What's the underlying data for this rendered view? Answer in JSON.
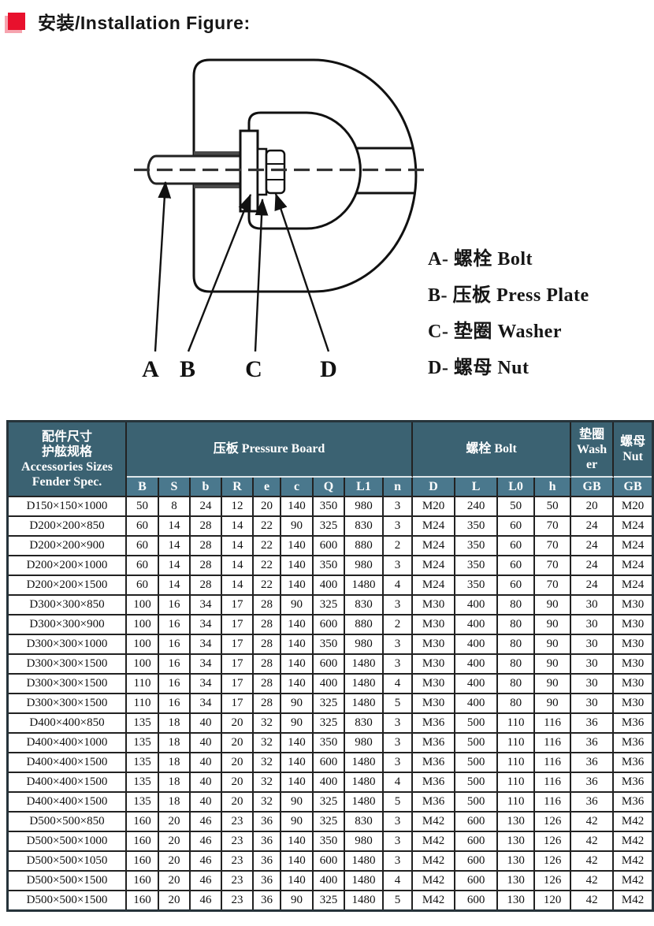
{
  "header": {
    "title": "安装/Installation Figure:"
  },
  "figure": {
    "part_labels": [
      "A",
      "B",
      "C",
      "D"
    ],
    "legend": [
      "A- 螺栓 Bolt",
      "B- 压板 Press Plate",
      "C- 垫圈 Washer",
      "D- 螺母 Nut"
    ]
  },
  "table": {
    "header": {
      "spec_lines": [
        "配件尺寸",
        "护舷规格",
        "Accessories Sizes",
        "Fender Spec."
      ],
      "pressure_board": "压板 Pressure Board",
      "bolt": "螺栓 Bolt",
      "washer_lines": [
        "垫圈",
        "Wash",
        "er"
      ],
      "nut_lines": [
        "螺母",
        "Nut"
      ],
      "pressure_cols": [
        "B",
        "S",
        "b",
        "R",
        "e",
        "c",
        "Q",
        "L1",
        "n"
      ],
      "bolt_cols": [
        "D",
        "L",
        "L0",
        "h"
      ],
      "washer_col": "GB",
      "nut_col": "GB"
    },
    "rows": [
      [
        "D150×150×1000",
        "50",
        "8",
        "24",
        "12",
        "20",
        "140",
        "350",
        "980",
        "3",
        "M20",
        "240",
        "50",
        "50",
        "20",
        "M20"
      ],
      [
        "D200×200×850",
        "60",
        "14",
        "28",
        "14",
        "22",
        "90",
        "325",
        "830",
        "3",
        "M24",
        "350",
        "60",
        "70",
        "24",
        "M24"
      ],
      [
        "D200×200×900",
        "60",
        "14",
        "28",
        "14",
        "22",
        "140",
        "600",
        "880",
        "2",
        "M24",
        "350",
        "60",
        "70",
        "24",
        "M24"
      ],
      [
        "D200×200×1000",
        "60",
        "14",
        "28",
        "14",
        "22",
        "140",
        "350",
        "980",
        "3",
        "M24",
        "350",
        "60",
        "70",
        "24",
        "M24"
      ],
      [
        "D200×200×1500",
        "60",
        "14",
        "28",
        "14",
        "22",
        "140",
        "400",
        "1480",
        "4",
        "M24",
        "350",
        "60",
        "70",
        "24",
        "M24"
      ],
      [
        "D300×300×850",
        "100",
        "16",
        "34",
        "17",
        "28",
        "90",
        "325",
        "830",
        "3",
        "M30",
        "400",
        "80",
        "90",
        "30",
        "M30"
      ],
      [
        "D300×300×900",
        "100",
        "16",
        "34",
        "17",
        "28",
        "140",
        "600",
        "880",
        "2",
        "M30",
        "400",
        "80",
        "90",
        "30",
        "M30"
      ],
      [
        "D300×300×1000",
        "100",
        "16",
        "34",
        "17",
        "28",
        "140",
        "350",
        "980",
        "3",
        "M30",
        "400",
        "80",
        "90",
        "30",
        "M30"
      ],
      [
        "D300×300×1500",
        "100",
        "16",
        "34",
        "17",
        "28",
        "140",
        "600",
        "1480",
        "3",
        "M30",
        "400",
        "80",
        "90",
        "30",
        "M30"
      ],
      [
        "D300×300×1500",
        "110",
        "16",
        "34",
        "17",
        "28",
        "140",
        "400",
        "1480",
        "4",
        "M30",
        "400",
        "80",
        "90",
        "30",
        "M30"
      ],
      [
        "D300×300×1500",
        "110",
        "16",
        "34",
        "17",
        "28",
        "90",
        "325",
        "1480",
        "5",
        "M30",
        "400",
        "80",
        "90",
        "30",
        "M30"
      ],
      [
        "D400×400×850",
        "135",
        "18",
        "40",
        "20",
        "32",
        "90",
        "325",
        "830",
        "3",
        "M36",
        "500",
        "110",
        "116",
        "36",
        "M36"
      ],
      [
        "D400×400×1000",
        "135",
        "18",
        "40",
        "20",
        "32",
        "140",
        "350",
        "980",
        "3",
        "M36",
        "500",
        "110",
        "116",
        "36",
        "M36"
      ],
      [
        "D400×400×1500",
        "135",
        "18",
        "40",
        "20",
        "32",
        "140",
        "600",
        "1480",
        "3",
        "M36",
        "500",
        "110",
        "116",
        "36",
        "M36"
      ],
      [
        "D400×400×1500",
        "135",
        "18",
        "40",
        "20",
        "32",
        "140",
        "400",
        "1480",
        "4",
        "M36",
        "500",
        "110",
        "116",
        "36",
        "M36"
      ],
      [
        "D400×400×1500",
        "135",
        "18",
        "40",
        "20",
        "32",
        "90",
        "325",
        "1480",
        "5",
        "M36",
        "500",
        "110",
        "116",
        "36",
        "M36"
      ],
      [
        "D500×500×850",
        "160",
        "20",
        "46",
        "23",
        "36",
        "90",
        "325",
        "830",
        "3",
        "M42",
        "600",
        "130",
        "126",
        "42",
        "M42"
      ],
      [
        "D500×500×1000",
        "160",
        "20",
        "46",
        "23",
        "36",
        "140",
        "350",
        "980",
        "3",
        "M42",
        "600",
        "130",
        "126",
        "42",
        "M42"
      ],
      [
        "D500×500×1050",
        "160",
        "20",
        "46",
        "23",
        "36",
        "140",
        "600",
        "1480",
        "3",
        "M42",
        "600",
        "130",
        "126",
        "42",
        "M42"
      ],
      [
        "D500×500×1500",
        "160",
        "20",
        "46",
        "23",
        "36",
        "140",
        "400",
        "1480",
        "4",
        "M42",
        "600",
        "130",
        "126",
        "42",
        "M42"
      ],
      [
        "D500×500×1500",
        "160",
        "20",
        "46",
        "23",
        "36",
        "90",
        "325",
        "1480",
        "5",
        "M42",
        "600",
        "130",
        "120",
        "42",
        "M42"
      ]
    ]
  },
  "colors": {
    "header_dark": "#3b6272",
    "header_light": "#4a788d",
    "accent_red": "#e8112d",
    "line_black": "#111111"
  }
}
